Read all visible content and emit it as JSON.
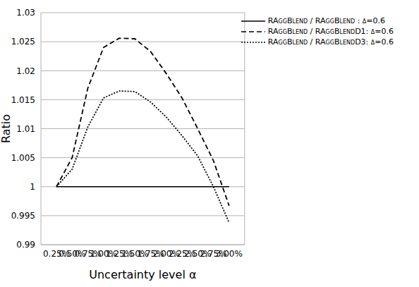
{
  "chart_data": {
    "type": "line",
    "x_label": "Uncertainty level α",
    "y_label": "Ratio",
    "categories": [
      "0.25%",
      "0.50%",
      "0.75%",
      "1.00%",
      "1.25%",
      "1.50%",
      "1.75%",
      "2.00%",
      "2.25%",
      "2.50%",
      "2.75%",
      "3.00%"
    ],
    "series": [
      {
        "name": "RAggBlend / RAggBlend : δ=0.6",
        "color": "#000000",
        "line_style": "solid",
        "values": [
          1,
          1,
          1,
          1,
          1,
          1,
          1,
          1,
          1,
          1,
          1,
          1
        ]
      },
      {
        "name": "RAggBlend / RAggBlendD1: δ=0.6",
        "color": "#000000",
        "line_style": "dashed",
        "values": [
          1.0,
          1.005,
          1.017,
          1.024,
          1.0256,
          1.0255,
          1.0233,
          1.0195,
          1.0153,
          1.01,
          1.0045,
          0.9967
        ]
      },
      {
        "name": "RAggBlend / RAggBlendD3: δ=0.6",
        "color": "#000000",
        "line_style": "dotted",
        "values": [
          1.0,
          1.003,
          1.0103,
          1.0153,
          1.0165,
          1.0164,
          1.0146,
          1.012,
          1.0088,
          1.0053,
          1.0,
          0.9938
        ]
      }
    ],
    "ylim": [
      0.99,
      1.03
    ],
    "yticks": [
      0.99,
      0.995,
      1,
      1.005,
      1.01,
      1.015,
      1.02,
      1.025,
      1.03
    ],
    "grid": true,
    "legend": "top-right"
  }
}
